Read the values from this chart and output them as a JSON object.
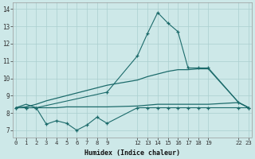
{
  "xlabel": "Humidex (Indice chaleur)",
  "background_color": "#cde8e8",
  "grid_color": "#aacfcf",
  "line_color": "#1c6b6b",
  "ylim": [
    6.6,
    14.4
  ],
  "yticks": [
    7,
    8,
    9,
    10,
    11,
    12,
    13,
    14
  ],
  "xlim": [
    -0.3,
    23.3
  ],
  "xtick_labels": [
    "0",
    "1",
    "2",
    "3",
    "4",
    "5",
    "6",
    "7",
    "8",
    "9",
    "12",
    "13",
    "14",
    "15",
    "16",
    "17",
    "18",
    "19",
    "22",
    "23"
  ],
  "xtick_positions": [
    0,
    1,
    2,
    3,
    4,
    5,
    6,
    7,
    8,
    9,
    12,
    13,
    14,
    15,
    16,
    17,
    18,
    19,
    22,
    23
  ],
  "line1_x": [
    0,
    1,
    2,
    3,
    4,
    5,
    6,
    7,
    8,
    9,
    12,
    13,
    14,
    15,
    16,
    17,
    18,
    19,
    22,
    23
  ],
  "line1_y": [
    8.3,
    8.35,
    8.5,
    8.7,
    8.85,
    9.0,
    9.15,
    9.3,
    9.45,
    9.6,
    9.9,
    10.1,
    10.25,
    10.4,
    10.5,
    10.5,
    10.55,
    10.55,
    8.6,
    8.3
  ],
  "line2_x": [
    0,
    1,
    2,
    3,
    4,
    5,
    6,
    7,
    8,
    9,
    12,
    13,
    14,
    15,
    16,
    17,
    18,
    19,
    22,
    23
  ],
  "line2_y": [
    8.3,
    8.5,
    8.3,
    8.3,
    8.3,
    8.35,
    8.35,
    8.35,
    8.35,
    8.35,
    8.4,
    8.45,
    8.5,
    8.5,
    8.5,
    8.5,
    8.5,
    8.5,
    8.6,
    8.3
  ],
  "line3_x": [
    0,
    1,
    2,
    3,
    4,
    5,
    6,
    7,
    8,
    9,
    12,
    13,
    14,
    15,
    16,
    17,
    18,
    19,
    22,
    23
  ],
  "line3_y": [
    8.3,
    8.3,
    8.3,
    7.35,
    7.55,
    7.4,
    7.0,
    7.3,
    7.75,
    7.4,
    8.3,
    8.3,
    8.3,
    8.3,
    8.3,
    8.3,
    8.3,
    8.3,
    8.3,
    8.3
  ],
  "line4_x": [
    0,
    1,
    2,
    9,
    12,
    13,
    14,
    15,
    16,
    17,
    18,
    19,
    22,
    23
  ],
  "line4_y": [
    8.3,
    8.3,
    8.3,
    9.2,
    11.3,
    12.6,
    13.8,
    13.2,
    12.7,
    10.6,
    10.6,
    10.6,
    8.6,
    8.3
  ]
}
